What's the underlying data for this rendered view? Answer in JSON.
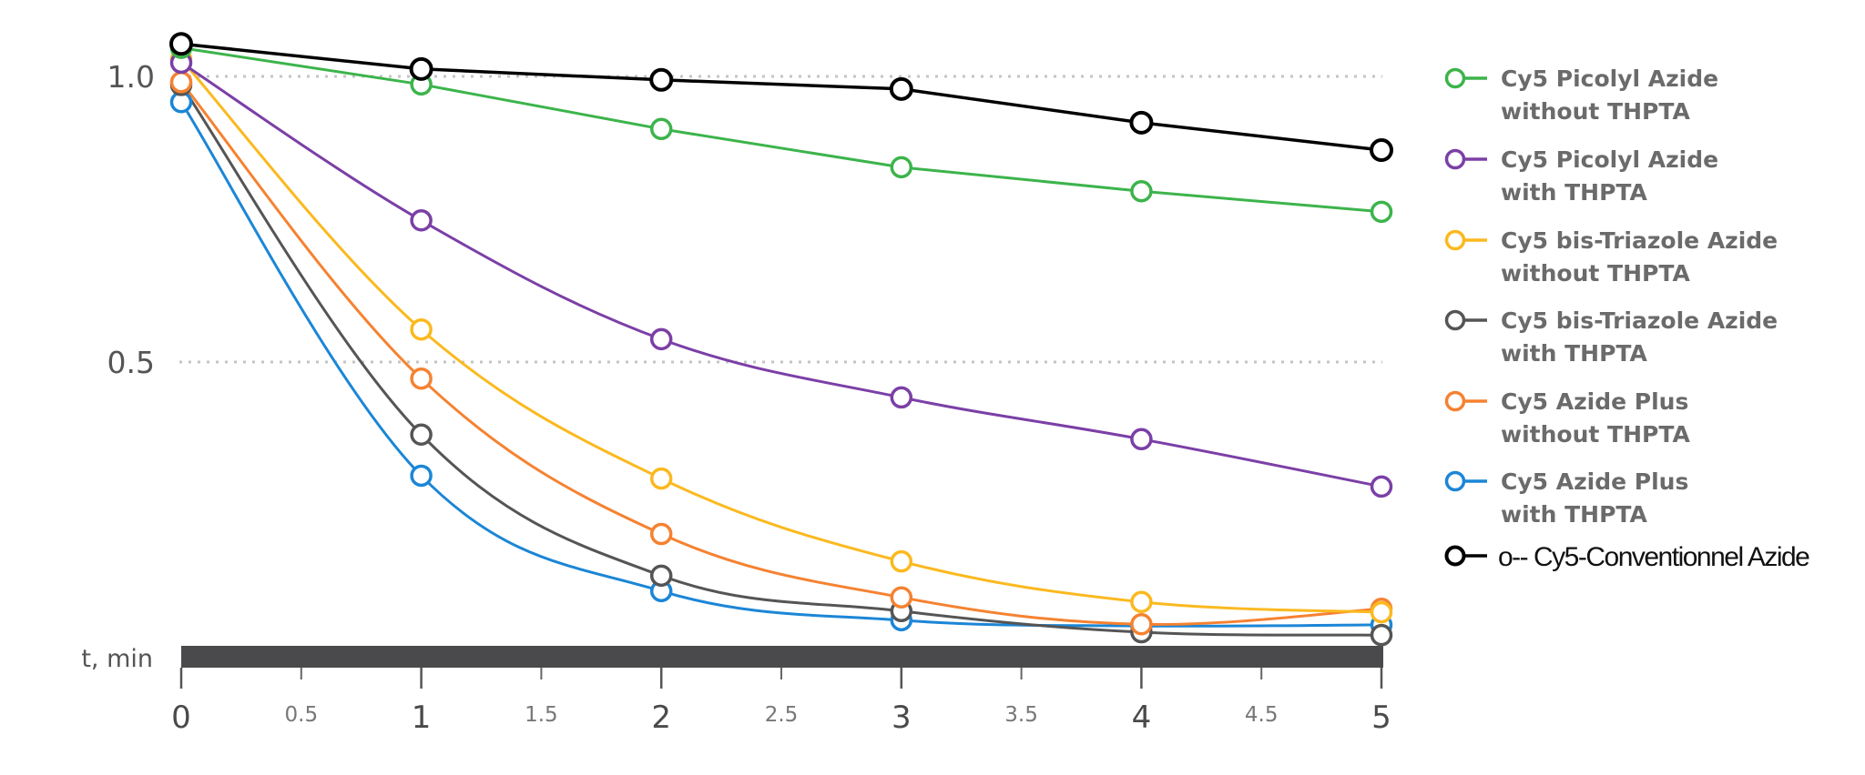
{
  "chart_data": {
    "type": "line",
    "title": "",
    "xlabel": "t, min",
    "ylabel": "",
    "xlim": [
      0,
      5
    ],
    "ylim": [
      0,
      1.05
    ],
    "x": [
      0,
      1,
      2,
      3,
      4,
      5
    ],
    "x_ticks_major": [
      "0",
      "1",
      "2",
      "3",
      "4",
      "5"
    ],
    "x_ticks_minor": [
      "0.5",
      "1.5",
      "2.5",
      "3.5",
      "4.5"
    ],
    "y_ticks": [
      "1.0",
      "0.5"
    ],
    "y_tick_values": [
      1.0,
      0.5
    ],
    "grid": "horizontal dotted at 0.5 and 1.0",
    "legend_position": "right",
    "series": [
      {
        "name": "Cy5 Picolyl Azide without THPTA",
        "legend_lines": [
          "Cy5 Picolyl Azide",
          "without THPTA"
        ],
        "color": "#3cb44b",
        "smooth": false,
        "values": [
          1.05,
          0.986,
          0.908,
          0.841,
          0.799,
          0.763
        ]
      },
      {
        "name": "Cy5 Picolyl Azide with THPTA",
        "legend_lines": [
          "Cy5 Picolyl Azide",
          "with THPTA"
        ],
        "color": "#7b3fa6",
        "smooth": true,
        "values": [
          1.024,
          0.748,
          0.54,
          0.438,
          0.365,
          0.282
        ]
      },
      {
        "name": "Cy5 bis-Triazole Azide without THPTA",
        "legend_lines": [
          "Cy5 bis-Triazole Azide",
          "without THPTA"
        ],
        "color": "#fbb91f",
        "smooth": true,
        "values": [
          1.03,
          0.557,
          0.296,
          0.151,
          0.08,
          0.062
        ]
      },
      {
        "name": "Cy5 bis-Triazole Azide with THPTA",
        "legend_lines": [
          "Cy5 bis-Triazole Azide",
          "with THPTA"
        ],
        "color": "#555555",
        "smooth": true,
        "values": [
          0.985,
          0.373,
          0.126,
          0.064,
          0.027,
          0.022
        ]
      },
      {
        "name": "Cy5 Azide Plus without THPTA",
        "legend_lines": [
          "Cy5 Azide Plus",
          "without THPTA"
        ],
        "color": "#f58231",
        "smooth": true,
        "values": [
          0.99,
          0.471,
          0.199,
          0.088,
          0.041,
          0.068
        ]
      },
      {
        "name": "Cy5 Azide Plus with THPTA",
        "legend_lines": [
          "Cy5 Azide Plus",
          "with THPTA"
        ],
        "color": "#1c86d6",
        "smooth": true,
        "values": [
          0.955,
          0.301,
          0.099,
          0.048,
          0.038,
          0.04
        ]
      },
      {
        "name": "o-- Cy5-Conventionnel Azide",
        "legend_lines": [
          "o-- Cy5-Conventionnel Azide"
        ],
        "color": "#000000",
        "smooth": false,
        "values": [
          1.057,
          1.013,
          0.994,
          0.978,
          0.919,
          0.871
        ]
      }
    ]
  },
  "axis": {
    "x_title": "t, min",
    "bar_color": "#4a4a4c"
  }
}
